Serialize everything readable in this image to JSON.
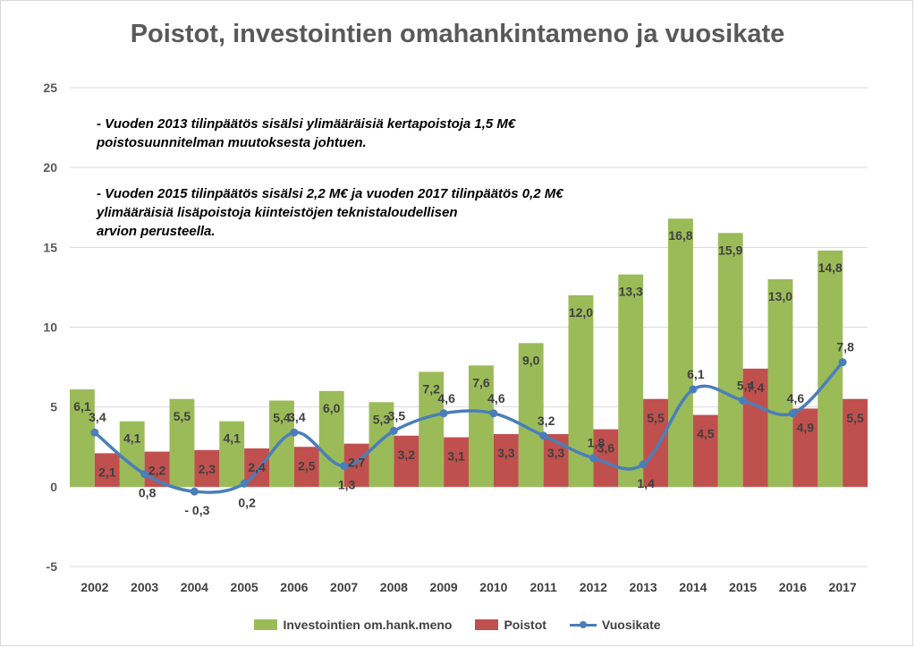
{
  "chart_data": {
    "type": "bar",
    "title": "Poistot, investointien omahankintameno ja vuosikate",
    "categories": [
      "2002",
      "2003",
      "2004",
      "2005",
      "2006",
      "2007",
      "2008",
      "2009",
      "2010",
      "2011",
      "2012",
      "2013",
      "2014",
      "2015",
      "2016",
      "2017"
    ],
    "series": [
      {
        "name": "Investointien om.hank.meno",
        "type": "bar",
        "color": "#9bbb59",
        "values": [
          6.1,
          4.1,
          5.5,
          4.1,
          5.4,
          6.0,
          5.3,
          7.2,
          7.6,
          9.0,
          12.0,
          13.3,
          16.8,
          15.9,
          13.0,
          14.8
        ],
        "labels": [
          "6,1",
          "4,1",
          "5,5",
          "4,1",
          "5,4",
          "6,0",
          "5,3",
          "7,2",
          "7,6",
          "9,0",
          "12,0",
          "13,3",
          "16,8",
          "15,9",
          "13,0",
          "14,8"
        ]
      },
      {
        "name": "Poistot",
        "type": "bar",
        "color": "#c0504d",
        "values": [
          2.1,
          2.2,
          2.3,
          2.4,
          2.5,
          2.7,
          3.2,
          3.1,
          3.3,
          3.3,
          3.6,
          5.5,
          4.5,
          7.4,
          4.9,
          5.5
        ],
        "labels": [
          "2,1",
          "2,2",
          "2,3",
          "2,4",
          "2,5",
          "2,7",
          "3,2",
          "3,1",
          "3,3",
          "3,3",
          "3,6",
          "5,5",
          "4,5",
          "7,4",
          "4,9",
          "5,5"
        ]
      },
      {
        "name": "Vuosikate",
        "type": "line",
        "smooth": true,
        "color": "#4a7ebb",
        "values": [
          3.4,
          0.8,
          -0.3,
          0.2,
          3.4,
          1.3,
          3.5,
          4.6,
          4.6,
          3.2,
          1.8,
          1.4,
          6.1,
          5.4,
          4.6,
          7.8
        ],
        "labels": [
          "3,4",
          "0,8",
          "- 0,3",
          "0,2",
          "3,4",
          "1,3",
          "3,5",
          "4,6",
          "4,6",
          "3,2",
          "1,8",
          "1,4",
          "6,1",
          "5,4",
          "4,6",
          "7,8"
        ]
      }
    ],
    "ylim": [
      -5,
      25
    ],
    "yticks": [
      "-5",
      "0",
      "5",
      "10",
      "15",
      "20",
      "25"
    ],
    "grid": true,
    "legend_position": "bottom"
  },
  "notes": {
    "note1": "- Vuoden 2013 tilinpäätös sisälsi ylimääräisiä kertapoistoja 1,5 M€\npoistosuunnitelman muutoksesta johtuen.",
    "note2": " - Vuoden 2015 tilinpäätös sisälsi 2,2 M€ ja vuoden 2017 tilinpäätös 0,2 M€\nylimääräisiä lisäpoistoja kiinteistöjen teknistaloudellisen\narvion perusteella."
  },
  "legend": {
    "invest": "Investointien om.hank.meno",
    "poistot": "Poistot",
    "vuosikate": "Vuosikate"
  }
}
